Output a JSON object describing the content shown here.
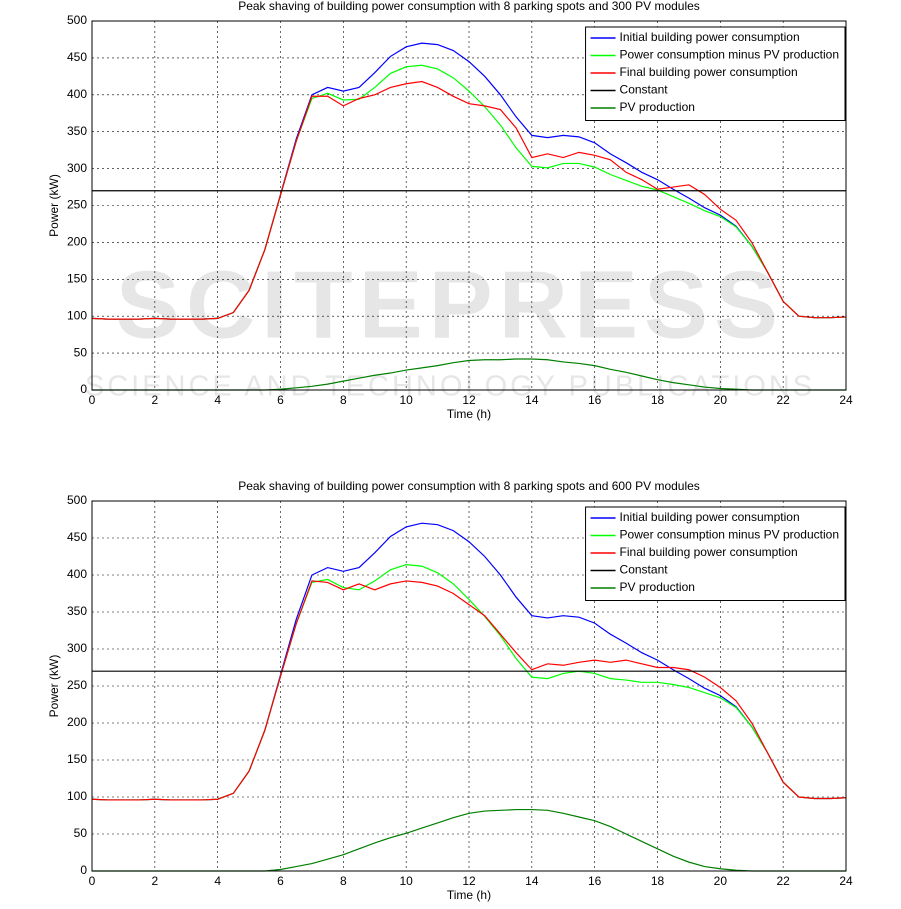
{
  "watermark": {
    "title": "SCITEPRESS",
    "subtitle": "SCIENCE AND TECHNOLOGY PUBLICATIONS"
  },
  "chart_data": [
    {
      "type": "line",
      "title": "Peak shaving of building power consumption with 8 parking spots and 300 PV modules",
      "x_label": "Time (h)",
      "y_label": "Power (kW)",
      "x": [
        0,
        0.5,
        1,
        1.5,
        2,
        2.5,
        3,
        3.5,
        4,
        4.5,
        5,
        5.5,
        6,
        6.5,
        7,
        7.5,
        8,
        8.5,
        9,
        9.5,
        10,
        10.5,
        11,
        11.5,
        12,
        12.5,
        13,
        13.5,
        14,
        14.5,
        15,
        15.5,
        16,
        16.5,
        17,
        17.5,
        18,
        18.5,
        19,
        19.5,
        20,
        20.5,
        21,
        21.5,
        22,
        22.5,
        23,
        23.5,
        24
      ],
      "xlim": [
        0,
        24
      ],
      "xticks": [
        0,
        2,
        4,
        6,
        8,
        10,
        12,
        14,
        16,
        18,
        20,
        22,
        24
      ],
      "ylim": [
        0,
        500
      ],
      "yticks": [
        0,
        50,
        100,
        150,
        200,
        250,
        300,
        350,
        400,
        450,
        500
      ],
      "grid": true,
      "legend": "upper right",
      "series": [
        {
          "name": "Initial building power consumption",
          "color": "#0000ff",
          "values": [
            97,
            96,
            96,
            96,
            97,
            96,
            96,
            96,
            97,
            105,
            135,
            190,
            265,
            340,
            400,
            410,
            405,
            410,
            430,
            452,
            465,
            470,
            468,
            460,
            445,
            425,
            400,
            370,
            345,
            342,
            345,
            343,
            335,
            320,
            308,
            295,
            285,
            272,
            260,
            247,
            237,
            222,
            195,
            160,
            120,
            100,
            98,
            98,
            99
          ]
        },
        {
          "name": "Power consumption minus PV production",
          "color": "#00ff00",
          "values": [
            97,
            96,
            96,
            96,
            97,
            96,
            96,
            96,
            97,
            105,
            135,
            190,
            264,
            337,
            395,
            402,
            393,
            394,
            410,
            429,
            438,
            440,
            435,
            423,
            405,
            384,
            359,
            328,
            303,
            301,
            307,
            307,
            302,
            292,
            284,
            276,
            271,
            262,
            253,
            243,
            235,
            221,
            195,
            160,
            120,
            100,
            98,
            98,
            99
          ]
        },
        {
          "name": "Final building power consumption",
          "color": "#ff0000",
          "values": [
            97,
            96,
            96,
            96,
            97,
            96,
            96,
            96,
            97,
            105,
            135,
            190,
            264,
            337,
            398,
            398,
            385,
            395,
            400,
            410,
            415,
            418,
            410,
            398,
            388,
            385,
            380,
            355,
            315,
            320,
            315,
            322,
            318,
            312,
            295,
            285,
            272,
            275,
            278,
            265,
            245,
            230,
            200,
            160,
            120,
            100,
            98,
            98,
            99
          ]
        },
        {
          "name": "Constant",
          "color": "#000000",
          "values": [
            270,
            270,
            270,
            270,
            270,
            270,
            270,
            270,
            270,
            270,
            270,
            270,
            270,
            270,
            270,
            270,
            270,
            270,
            270,
            270,
            270,
            270,
            270,
            270,
            270,
            270,
            270,
            270,
            270,
            270,
            270,
            270,
            270,
            270,
            270,
            270,
            270,
            270,
            270,
            270,
            270,
            270,
            270,
            270,
            270,
            270,
            270,
            270,
            270
          ]
        },
        {
          "name": "PV production",
          "color": "#007f00",
          "values": [
            0,
            0,
            0,
            0,
            0,
            0,
            0,
            0,
            0,
            0,
            0,
            0,
            1,
            3,
            5,
            8,
            12,
            16,
            20,
            23,
            27,
            30,
            33,
            37,
            40,
            41,
            41,
            42,
            42,
            41,
            38,
            36,
            33,
            28,
            24,
            19,
            14,
            10,
            7,
            4,
            2,
            1,
            0,
            0,
            0,
            0,
            0,
            0,
            0
          ]
        }
      ]
    },
    {
      "type": "line",
      "title": "Peak shaving of building power consumption with 8 parking spots and 600 PV modules",
      "x_label": "Time (h)",
      "y_label": "Power (kW)",
      "x": [
        0,
        0.5,
        1,
        1.5,
        2,
        2.5,
        3,
        3.5,
        4,
        4.5,
        5,
        5.5,
        6,
        6.5,
        7,
        7.5,
        8,
        8.5,
        9,
        9.5,
        10,
        10.5,
        11,
        11.5,
        12,
        12.5,
        13,
        13.5,
        14,
        14.5,
        15,
        15.5,
        16,
        16.5,
        17,
        17.5,
        18,
        18.5,
        19,
        19.5,
        20,
        20.5,
        21,
        21.5,
        22,
        22.5,
        23,
        23.5,
        24
      ],
      "xlim": [
        0,
        24
      ],
      "xticks": [
        0,
        2,
        4,
        6,
        8,
        10,
        12,
        14,
        16,
        18,
        20,
        22,
        24
      ],
      "ylim": [
        0,
        500
      ],
      "yticks": [
        0,
        50,
        100,
        150,
        200,
        250,
        300,
        350,
        400,
        450,
        500
      ],
      "grid": true,
      "legend": "upper right",
      "series": [
        {
          "name": "Initial building power consumption",
          "color": "#0000ff",
          "values": [
            97,
            96,
            96,
            96,
            97,
            96,
            96,
            96,
            97,
            105,
            135,
            190,
            265,
            340,
            400,
            410,
            405,
            410,
            430,
            452,
            465,
            470,
            468,
            460,
            445,
            425,
            400,
            370,
            345,
            342,
            345,
            343,
            335,
            320,
            308,
            295,
            285,
            272,
            260,
            247,
            237,
            222,
            195,
            160,
            120,
            100,
            98,
            98,
            99
          ]
        },
        {
          "name": "Power consumption minus PV production",
          "color": "#00ff00",
          "values": [
            97,
            96,
            96,
            96,
            97,
            96,
            96,
            96,
            97,
            105,
            135,
            190,
            263,
            334,
            390,
            394,
            383,
            380,
            392,
            407,
            414,
            412,
            403,
            388,
            367,
            344,
            318,
            287,
            262,
            260,
            267,
            270,
            267,
            260,
            258,
            255,
            255,
            252,
            248,
            241,
            234,
            221,
            195,
            160,
            120,
            100,
            98,
            98,
            99
          ]
        },
        {
          "name": "Final building power consumption",
          "color": "#ff0000",
          "values": [
            97,
            96,
            96,
            96,
            97,
            96,
            96,
            96,
            97,
            105,
            135,
            190,
            263,
            334,
            392,
            390,
            380,
            388,
            380,
            388,
            392,
            390,
            385,
            375,
            360,
            345,
            320,
            295,
            272,
            280,
            278,
            282,
            285,
            282,
            285,
            280,
            275,
            275,
            272,
            262,
            248,
            230,
            200,
            160,
            120,
            100,
            98,
            98,
            99
          ]
        },
        {
          "name": "Constant",
          "color": "#000000",
          "values": [
            270,
            270,
            270,
            270,
            270,
            270,
            270,
            270,
            270,
            270,
            270,
            270,
            270,
            270,
            270,
            270,
            270,
            270,
            270,
            270,
            270,
            270,
            270,
            270,
            270,
            270,
            270,
            270,
            270,
            270,
            270,
            270,
            270,
            270,
            270,
            270,
            270,
            270,
            270,
            270,
            270,
            270,
            270,
            270,
            270,
            270,
            270,
            270,
            270
          ]
        },
        {
          "name": "PV production",
          "color": "#007f00",
          "values": [
            0,
            0,
            0,
            0,
            0,
            0,
            0,
            0,
            0,
            0,
            0,
            0,
            2,
            6,
            10,
            16,
            22,
            30,
            38,
            45,
            51,
            58,
            65,
            72,
            78,
            81,
            82,
            83,
            83,
            82,
            78,
            73,
            68,
            60,
            50,
            40,
            30,
            20,
            12,
            6,
            3,
            1,
            0,
            0,
            0,
            0,
            0,
            0,
            0
          ]
        }
      ]
    }
  ]
}
